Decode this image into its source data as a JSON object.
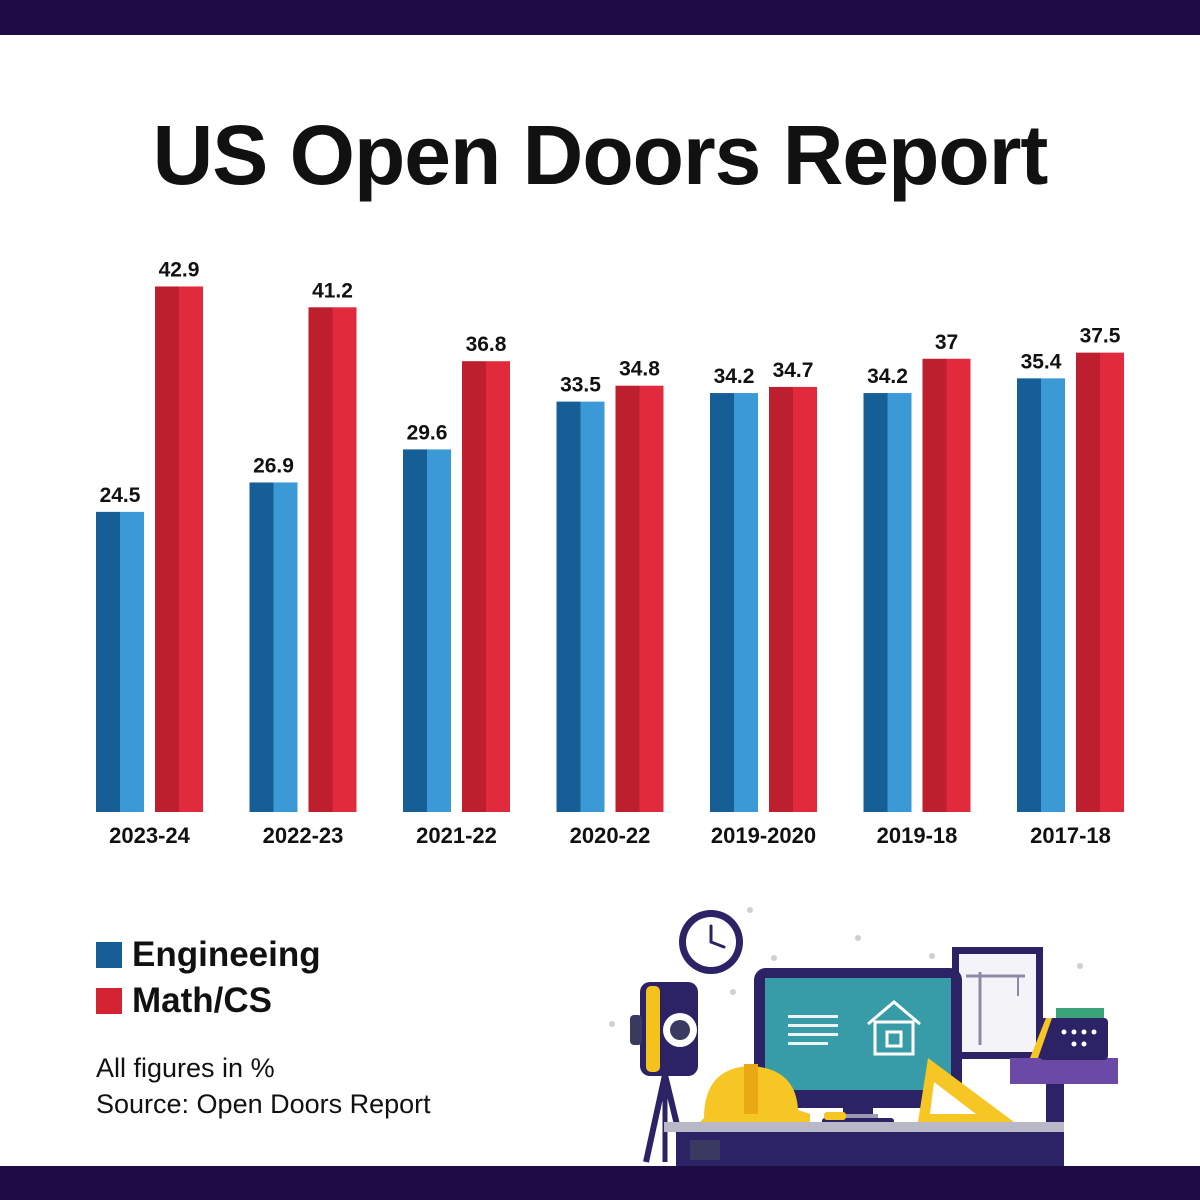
{
  "title": "US Open Doors Report",
  "colors": {
    "band": "#1e0d44",
    "engineering_dark": "#155f96",
    "engineering_light": "#3b9ad6",
    "math_dark": "#be1f2e",
    "math_light": "#e12a3c"
  },
  "legend": [
    {
      "label": "Engineeing",
      "color": "#155f96"
    },
    {
      "label": "Math/CS",
      "color": "#d42434"
    }
  ],
  "notes": {
    "units": "All figures in %",
    "source": "Source: Open Doors Report"
  },
  "illustration": {
    "items": [
      "clock-icon",
      "survey-camera-icon",
      "hard-hat-icon",
      "monitor-icon",
      "house-icon",
      "set-square-icon",
      "framed-crane-icon",
      "printer-icon",
      "screwdriver-icon",
      "desk-icon"
    ]
  },
  "chart_data": {
    "type": "bar",
    "title": "US Open Doors Report",
    "categories": [
      "2023-24",
      "2022-23",
      "2021-22",
      "2020-22",
      "2019-2020",
      "2019-18",
      "2017-18"
    ],
    "series": [
      {
        "name": "Engineeing",
        "values": [
          24.5,
          26.9,
          29.6,
          33.5,
          34.2,
          34.2,
          35.4
        ]
      },
      {
        "name": "Math/CS",
        "values": [
          42.9,
          41.2,
          36.8,
          34.8,
          34.7,
          37,
          37.5
        ]
      }
    ],
    "data_label_text": [
      [
        "24.5",
        "26.9",
        "29.6",
        "33.5",
        "34.2",
        "34.2",
        "35.4"
      ],
      [
        "42.9",
        "41.2",
        "36.8",
        "34.8",
        "34.7",
        "37",
        "37.5"
      ]
    ],
    "ylim": [
      0,
      50
    ],
    "grid": false,
    "legend_position": "bottom-left",
    "xlabel": "",
    "ylabel": ""
  }
}
